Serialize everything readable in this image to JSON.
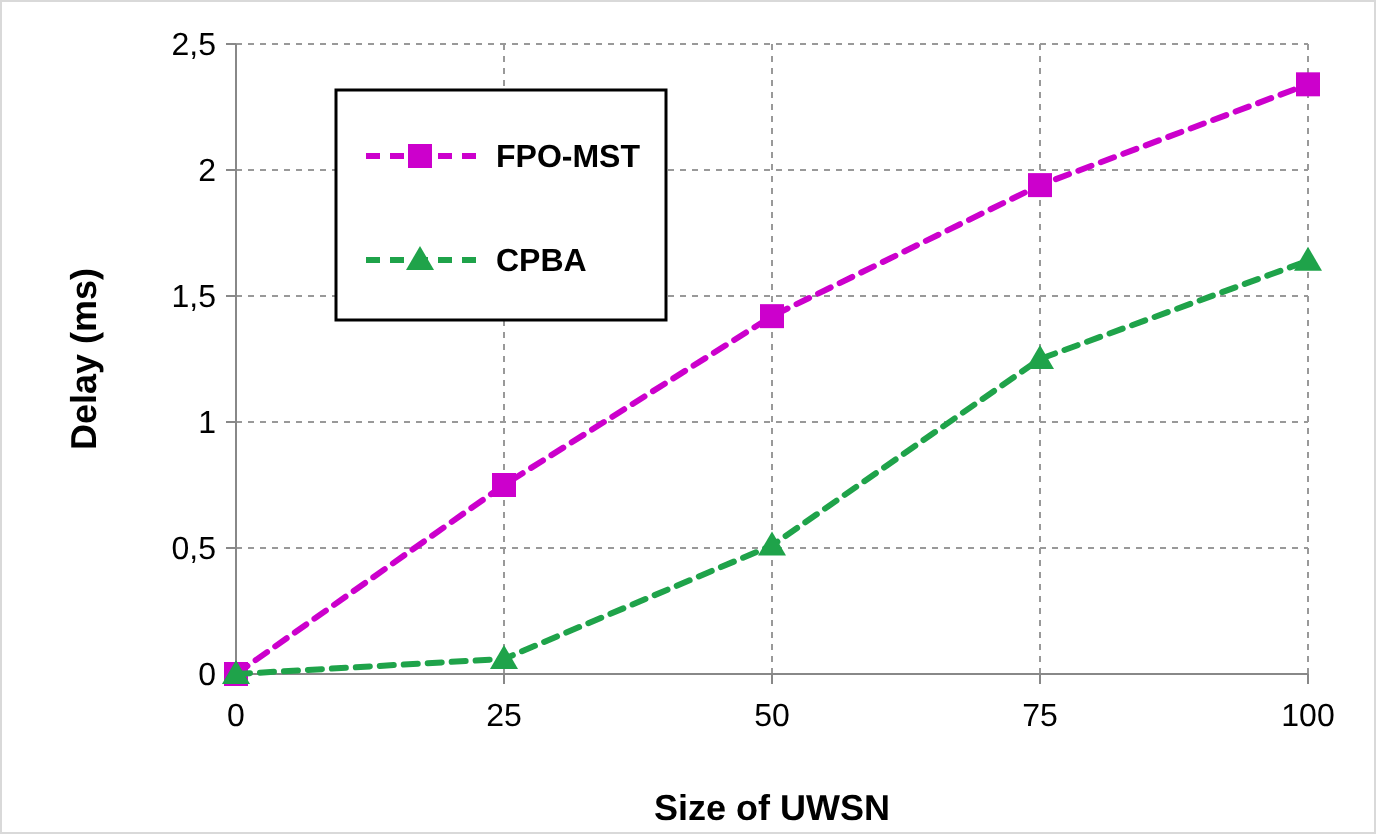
{
  "chart_data": {
    "type": "line",
    "xlabel": "Size of UWSN",
    "ylabel": "Delay (ms)",
    "x": [
      0,
      25,
      50,
      75,
      100
    ],
    "xlim": [
      0,
      100
    ],
    "xticks": [
      0,
      25,
      50,
      75,
      100
    ],
    "ylim": [
      0,
      2.5
    ],
    "yticks": [
      0,
      {
        "value": 0.5,
        "label": "0,5"
      },
      1,
      {
        "value": 1.5,
        "label": "1,5"
      },
      2,
      {
        "value": 2.5,
        "label": "2,5"
      }
    ],
    "grid": true,
    "legend": "top left",
    "line_style": "dashed",
    "series": [
      {
        "name": "FPO-MST",
        "color": "#cc00cc",
        "marker": "square",
        "values": [
          0,
          0.75,
          1.42,
          1.94,
          2.34
        ]
      },
      {
        "name": "CPBA",
        "color": "#1fa34a",
        "marker": "triangle",
        "values": [
          0,
          0.06,
          0.51,
          1.25,
          1.64
        ]
      }
    ]
  }
}
